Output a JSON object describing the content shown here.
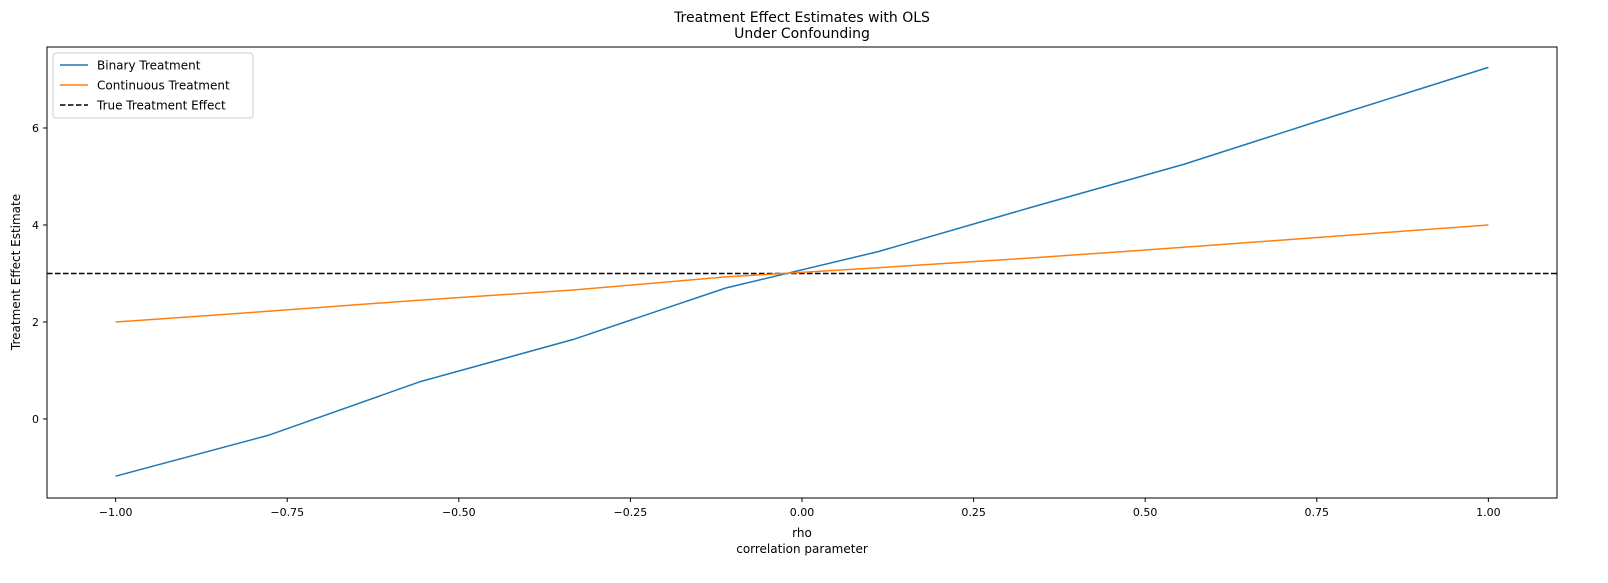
{
  "chart_data": {
    "type": "line",
    "title": "Treatment Effect Estimates with OLS",
    "subtitle": "Under Confounding",
    "xlabel": "rho",
    "xlabel_sub": "correlation parameter",
    "ylabel": "Treatment Effect Estimate",
    "xlim": [
      -1.1,
      1.1
    ],
    "ylim": [
      -1.63,
      7.67
    ],
    "xticks": [
      "-1.00",
      "-0.75",
      "-0.50",
      "-0.25",
      "0.00",
      "0.25",
      "0.50",
      "0.75",
      "1.00"
    ],
    "yticks": [
      "0",
      "2",
      "4",
      "6"
    ],
    "grid": false,
    "legend_position": "top-left",
    "x": [
      -1.0,
      -0.778,
      -0.556,
      -0.333,
      -0.111,
      0.111,
      0.333,
      0.556,
      0.778,
      1.0
    ],
    "series": [
      {
        "name": "Binary Treatment",
        "color": "#1f77b4",
        "style": "solid",
        "values": [
          -1.18,
          -0.34,
          0.77,
          1.64,
          2.7,
          3.45,
          4.36,
          5.25,
          6.26,
          7.25
        ]
      },
      {
        "name": "Continuous Treatment",
        "color": "#ff7f0e",
        "style": "solid",
        "values": [
          2.0,
          2.22,
          2.45,
          2.66,
          2.93,
          3.12,
          3.32,
          3.54,
          3.77,
          4.0
        ]
      }
    ],
    "reference_line": {
      "name": "True Treatment Effect",
      "y": 3,
      "color": "#000000",
      "style": "dashed"
    }
  }
}
